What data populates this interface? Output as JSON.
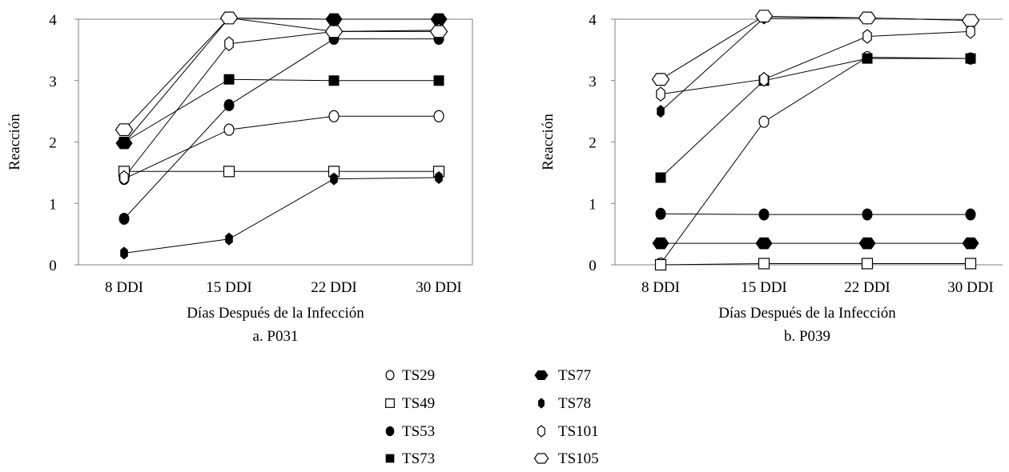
{
  "chart_data": [
    {
      "type": "line",
      "caption": "a. P031",
      "xlabel": "Días Después de la Infección",
      "ylabel": "Reacción",
      "categories": [
        "8 DDI",
        "15 DDI",
        "22 DDI",
        "30 DDI"
      ],
      "yticks": [
        "0",
        "1",
        "2",
        "3",
        "4"
      ],
      "ylim": [
        0,
        4
      ],
      "series": [
        {
          "name": "TS29",
          "values": [
            1.4,
            2.2,
            2.42,
            2.42
          ]
        },
        {
          "name": "TS49",
          "values": [
            1.52,
            1.52,
            1.52,
            1.52
          ]
        },
        {
          "name": "TS53",
          "values": [
            0.75,
            2.6,
            3.68,
            3.68
          ]
        },
        {
          "name": "TS73",
          "values": [
            2.0,
            3.02,
            3.0,
            3.0
          ]
        },
        {
          "name": "TS77",
          "values": [
            1.98,
            4.02,
            4.0,
            4.0
          ]
        },
        {
          "name": "TS78",
          "values": [
            0.19,
            0.42,
            1.4,
            1.42
          ]
        },
        {
          "name": "TS101",
          "values": [
            1.42,
            3.6,
            3.8,
            3.82
          ]
        },
        {
          "name": "TS105",
          "values": [
            2.2,
            4.02,
            3.8,
            3.8
          ]
        }
      ]
    },
    {
      "type": "line",
      "caption": "b. P039",
      "xlabel": "Días Después de la Infección",
      "ylabel": "Reacción",
      "categories": [
        "8 DDI",
        "15 DDI",
        "22 DDI",
        "30 DDI"
      ],
      "yticks": [
        "0",
        "1",
        "2",
        "3",
        "4"
      ],
      "ylim": [
        0,
        4
      ],
      "series": [
        {
          "name": "TS29",
          "values": [
            0.02,
            2.33,
            3.38,
            3.36
          ]
        },
        {
          "name": "TS49",
          "values": [
            0.0,
            0.02,
            0.02,
            0.02
          ]
        },
        {
          "name": "TS53",
          "values": [
            0.83,
            0.82,
            0.82,
            0.82
          ]
        },
        {
          "name": "TS73",
          "values": [
            1.42,
            3.0,
            3.36,
            3.36
          ]
        },
        {
          "name": "TS77",
          "values": [
            0.35,
            0.35,
            0.35,
            0.35
          ]
        },
        {
          "name": "TS78",
          "values": [
            2.5,
            4.02,
            4.02,
            3.98
          ]
        },
        {
          "name": "TS101",
          "values": [
            2.78,
            3.02,
            3.72,
            3.8
          ]
        },
        {
          "name": "TS105",
          "values": [
            3.02,
            4.05,
            4.02,
            3.98
          ]
        }
      ]
    }
  ],
  "legend": {
    "entries": [
      {
        "label": "TS29",
        "marker": "open-circle"
      },
      {
        "label": "TS49",
        "marker": "open-square"
      },
      {
        "label": "TS53",
        "marker": "filled-circle"
      },
      {
        "label": "TS73",
        "marker": "filled-square"
      },
      {
        "label": "TS77",
        "marker": "filled-hexagon"
      },
      {
        "label": "TS78",
        "marker": "filled-narrow-hexagon"
      },
      {
        "label": "TS101",
        "marker": "open-narrow-hexagon"
      },
      {
        "label": "TS105",
        "marker": "open-hexagon"
      }
    ]
  }
}
